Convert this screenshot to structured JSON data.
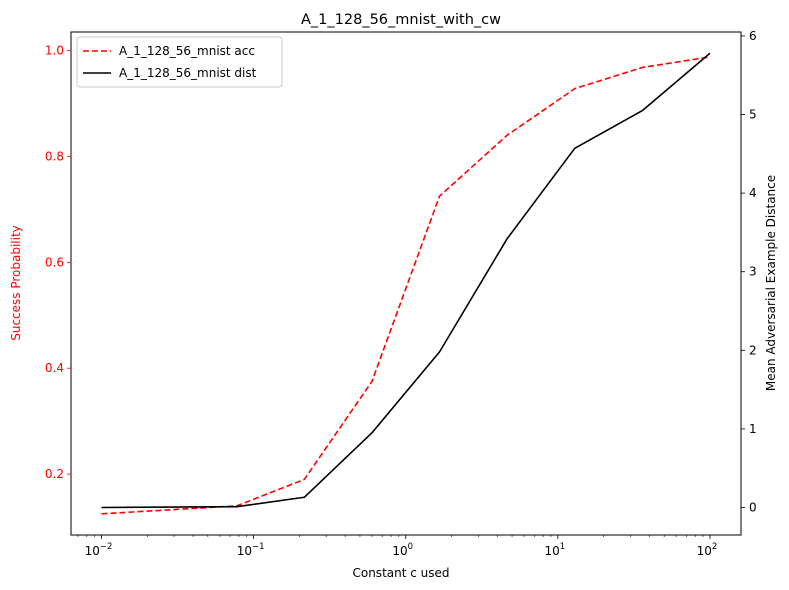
{
  "chart_data": {
    "type": "line",
    "title": "A_1_128_56_mnist_with_cw",
    "xlabel": "Constant c used",
    "ylabel_left": "Success Probability",
    "ylabel_right": "Mean Adversarial Example Distance",
    "xscale": "log",
    "xlim": [
      0.0063,
      160
    ],
    "ylim_left": [
      0.085,
      1.035
    ],
    "ylim_right": [
      -0.35,
      6.05
    ],
    "x_ticks": [
      0.01,
      0.1,
      1,
      10,
      100
    ],
    "x_tick_labels": [
      {
        "base": "10",
        "exp": "−2"
      },
      {
        "base": "10",
        "exp": "−1"
      },
      {
        "base": "10",
        "exp": "0"
      },
      {
        "base": "10",
        "exp": "1"
      },
      {
        "base": "10",
        "exp": "2"
      }
    ],
    "y_ticks_left": [
      "0.2",
      "0.4",
      "0.6",
      "0.8",
      "1.0"
    ],
    "y_ticks_right": [
      "0",
      "1",
      "2",
      "3",
      "4",
      "5",
      "6"
    ],
    "x": [
      0.01,
      0.0774,
      0.2154,
      0.5995,
      1.6681,
      4.6416,
      12.9155,
      35.9381,
      100
    ],
    "series": [
      {
        "name": "A_1_128_56_mnist acc",
        "axis": "left",
        "color": "#ff0000",
        "style": "dashed",
        "values": [
          0.125,
          0.14,
          0.19,
          0.375,
          0.725,
          0.84,
          0.928,
          0.968,
          0.988
        ]
      },
      {
        "name": "A_1_128_56_mnist dist",
        "axis": "right",
        "color": "#000000",
        "style": "solid",
        "values": [
          0.0,
          0.01,
          0.13,
          0.95,
          1.98,
          3.42,
          4.57,
          5.05,
          5.78
        ]
      }
    ],
    "legend_position": "upper-left",
    "grid": false,
    "left_axis_color": "#ff0000",
    "right_axis_color": "#000000"
  }
}
